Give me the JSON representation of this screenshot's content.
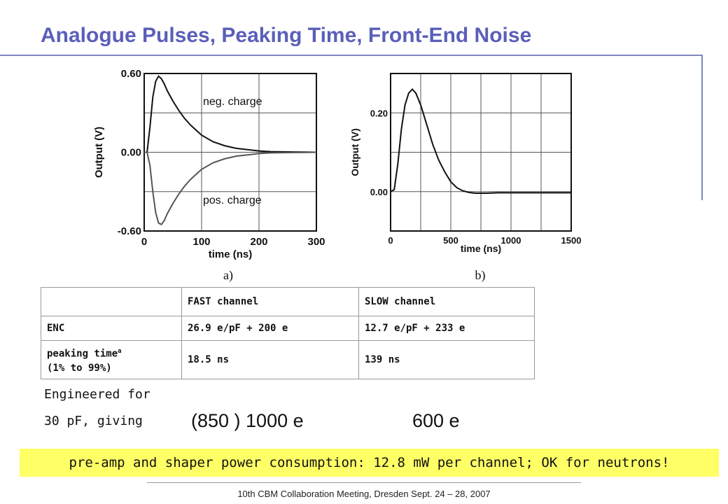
{
  "slide": {
    "title": "Analogue Pulses, Peaking Time, Front-End Noise",
    "footer": "10th CBM Collaboration Meeting, Dresden Sept. 24 – 28, 2007"
  },
  "chart_data": [
    {
      "type": "line",
      "panel_label": "a)",
      "xlabel": "time (ns)",
      "ylabel": "Output (V)",
      "xlim": [
        0,
        300
      ],
      "ylim": [
        -0.6,
        0.6
      ],
      "x_ticks": [
        "0",
        "100",
        "200",
        "300"
      ],
      "y_ticks": [
        "0.60",
        "0.00",
        "-0.60"
      ],
      "grid": true,
      "annotations": [
        "neg. charge",
        "pos. charge"
      ],
      "series": [
        {
          "x": [
            0,
            5,
            10,
            15,
            20,
            25,
            30,
            35,
            40,
            50,
            60,
            70,
            80,
            90,
            100,
            120,
            140,
            160,
            180,
            200,
            220,
            240,
            260,
            280,
            300
          ],
          "y": [
            0,
            0.0,
            0.19,
            0.42,
            0.54,
            0.58,
            0.56,
            0.52,
            0.47,
            0.39,
            0.32,
            0.26,
            0.21,
            0.17,
            0.13,
            0.08,
            0.05,
            0.03,
            0.02,
            0.01,
            0.005,
            0.003,
            0.002,
            0.001,
            0.0
          ]
        },
        {
          "x": [
            0,
            5,
            10,
            15,
            20,
            25,
            30,
            35,
            40,
            50,
            60,
            70,
            80,
            90,
            100,
            120,
            140,
            160,
            180,
            200,
            220,
            240,
            260,
            280,
            300
          ],
          "y": [
            0,
            0.0,
            -0.1,
            -0.3,
            -0.46,
            -0.54,
            -0.55,
            -0.52,
            -0.47,
            -0.39,
            -0.32,
            -0.26,
            -0.21,
            -0.17,
            -0.13,
            -0.08,
            -0.05,
            -0.03,
            -0.02,
            -0.01,
            -0.005,
            -0.003,
            -0.002,
            -0.001,
            0.0
          ]
        }
      ]
    },
    {
      "type": "line",
      "panel_label": "b)",
      "xlabel": "time (ns)",
      "ylabel": "Output (V)",
      "xlim": [
        0,
        1500
      ],
      "ylim": [
        -0.1,
        0.3
      ],
      "x_ticks": [
        "0",
        "500",
        "1000",
        "1500"
      ],
      "y_ticks": [
        "0.20",
        "0.00"
      ],
      "grid": true,
      "series": [
        {
          "x": [
            0,
            30,
            60,
            90,
            120,
            150,
            180,
            210,
            250,
            300,
            350,
            400,
            450,
            500,
            550,
            600,
            650,
            700,
            800,
            900,
            1000,
            1200,
            1500
          ],
          "y": [
            0,
            0.005,
            0.07,
            0.16,
            0.22,
            0.25,
            0.26,
            0.25,
            0.22,
            0.17,
            0.12,
            0.08,
            0.05,
            0.025,
            0.01,
            0.002,
            -0.002,
            -0.004,
            -0.004,
            -0.003,
            -0.003,
            -0.003,
            -0.003
          ]
        }
      ]
    }
  ],
  "table": {
    "headers": [
      "",
      "FAST channel",
      "SLOW channel"
    ],
    "rows": [
      {
        "label": "ENC",
        "fast": "26.9 e/pF + 200 e",
        "slow": "12.7 e/pF + 233 e"
      },
      {
        "label_line1": "peaking time",
        "label_sup": "a",
        "label_line2": "(1% to 99%)",
        "fast": "18.5 ns",
        "slow": "139 ns"
      }
    ]
  },
  "engineered": {
    "line1": "Engineered for",
    "line2": "30 pF, giving",
    "fast_value": "(850 ) 1000 e",
    "slow_value": "600 e"
  },
  "banner": "pre-amp and shaper power consumption: 12.8 mW per channel; OK for neutrons!",
  "colors": {
    "title": "#5a5fb8",
    "rule": "#7f86c0",
    "banner_bg": "#ffff66"
  }
}
